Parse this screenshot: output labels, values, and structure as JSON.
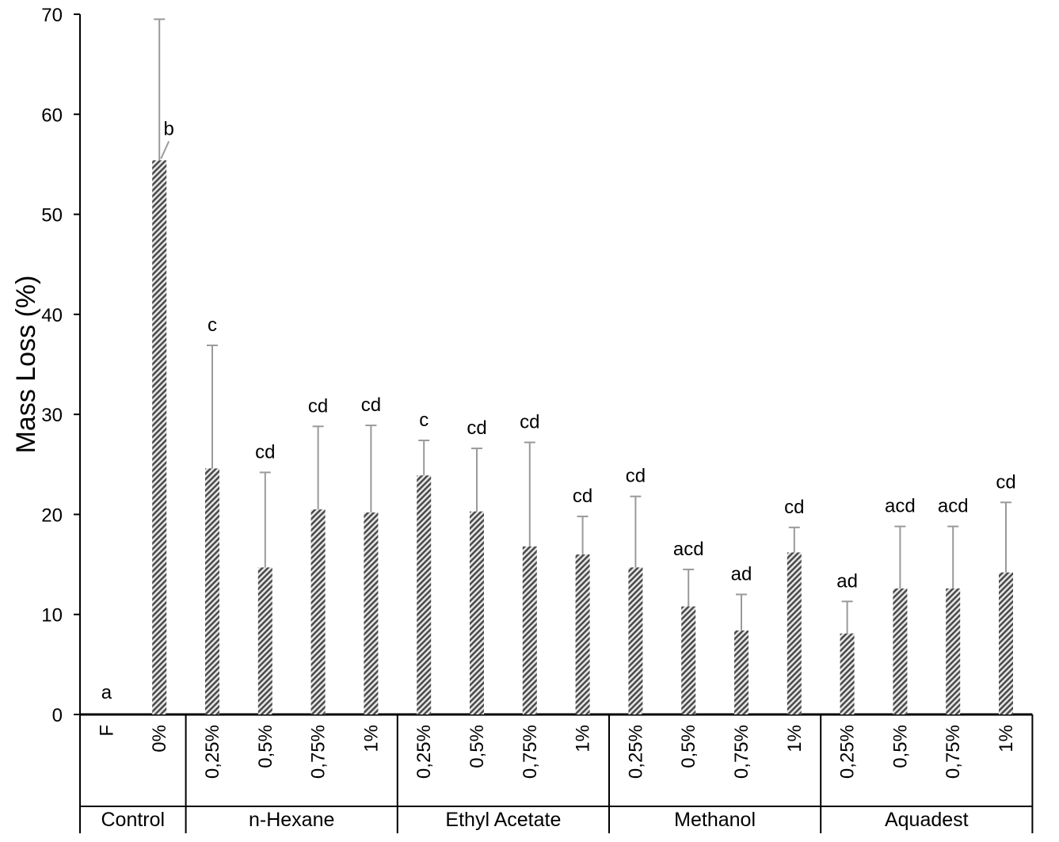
{
  "chart_data": {
    "type": "bar",
    "ylabel": "Mass Loss (%)",
    "ylim": [
      0,
      70
    ],
    "y_ticks": [
      0,
      10,
      20,
      30,
      40,
      50,
      60,
      70
    ],
    "grid": false,
    "legend": "none",
    "colors": {
      "bar_light": "#e6e6e6",
      "bar_dark": "#4a4a4a",
      "error_bar": "#9a9a9a",
      "axis": "#000000"
    },
    "groups": [
      {
        "name": "Control",
        "bars": [
          {
            "label": "F",
            "value": 0,
            "error": 0,
            "letter": "a"
          },
          {
            "label": "0%",
            "value": 55.4,
            "error": 14.1,
            "letter": "b"
          }
        ]
      },
      {
        "name": "n-Hexane",
        "bars": [
          {
            "label": "0,25%",
            "value": 24.6,
            "error": 12.3,
            "letter": "c"
          },
          {
            "label": "0,5%",
            "value": 14.7,
            "error": 9.5,
            "letter": "cd"
          },
          {
            "label": "0,75%",
            "value": 20.5,
            "error": 8.3,
            "letter": "cd"
          },
          {
            "label": "1%",
            "value": 20.2,
            "error": 8.7,
            "letter": "cd"
          }
        ]
      },
      {
        "name": "Ethyl Acetate",
        "bars": [
          {
            "label": "0,25%",
            "value": 23.9,
            "error": 3.5,
            "letter": "c"
          },
          {
            "label": "0,5%",
            "value": 20.3,
            "error": 6.3,
            "letter": "cd"
          },
          {
            "label": "0,75%",
            "value": 16.8,
            "error": 10.4,
            "letter": "cd"
          },
          {
            "label": "1%",
            "value": 16.0,
            "error": 3.8,
            "letter": "cd"
          }
        ]
      },
      {
        "name": "Methanol",
        "bars": [
          {
            "label": "0,25%",
            "value": 14.7,
            "error": 7.1,
            "letter": "cd"
          },
          {
            "label": "0,5%",
            "value": 10.8,
            "error": 3.7,
            "letter": "acd"
          },
          {
            "label": "0,75%",
            "value": 8.4,
            "error": 3.6,
            "letter": "ad"
          },
          {
            "label": "1%",
            "value": 16.2,
            "error": 2.5,
            "letter": "cd"
          }
        ]
      },
      {
        "name": "Aquadest",
        "bars": [
          {
            "label": "0,25%",
            "value": 8.1,
            "error": 3.2,
            "letter": "ad"
          },
          {
            "label": "0,5%",
            "value": 12.6,
            "error": 6.2,
            "letter": "acd"
          },
          {
            "label": "0,75%",
            "value": 12.6,
            "error": 6.2,
            "letter": "acd"
          },
          {
            "label": "1%",
            "value": 14.2,
            "error": 7.0,
            "letter": "cd"
          }
        ]
      }
    ]
  }
}
